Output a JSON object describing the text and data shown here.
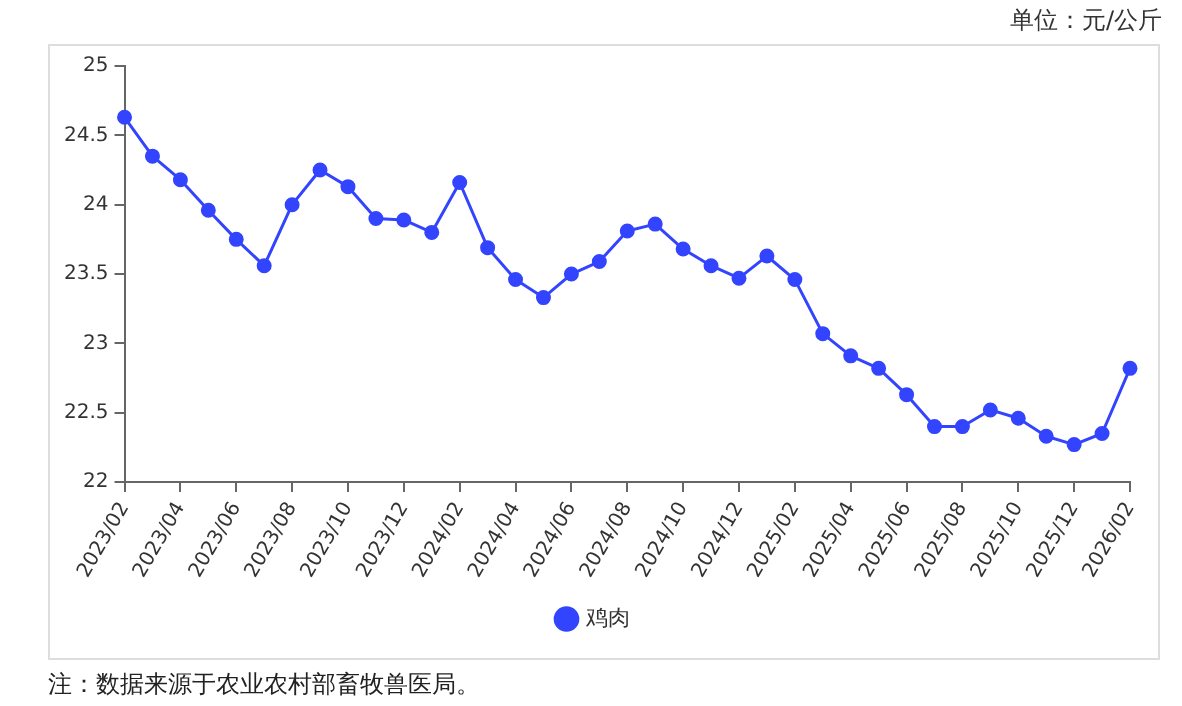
{
  "chart_data": {
    "type": "line",
    "ylabel": "单位：元/公斤",
    "annotations": [
      "注：数据来源于农业农村部畜牧兽医局。"
    ],
    "categories": [
      "2023/02",
      null,
      "2023/04",
      null,
      "2023/06",
      null,
      "2023/08",
      null,
      "2023/10",
      null,
      "2023/12",
      null,
      "2024/02",
      null,
      "2024/04",
      null,
      "2024/06",
      null,
      "2024/08",
      null,
      "2024/10",
      null,
      "2024/12",
      null,
      "2025/02",
      null,
      "2025/04",
      null,
      "2025/06",
      null,
      "2025/08",
      null,
      "2025/10",
      null,
      "2025/12",
      null,
      "2026/02"
    ],
    "series": [
      {
        "name": "鸡肉",
        "color": "#3344ff",
        "values": [
          24.63,
          24.35,
          24.18,
          23.96,
          23.75,
          23.56,
          24.0,
          24.25,
          24.13,
          23.9,
          23.89,
          23.8,
          24.16,
          23.69,
          23.46,
          23.33,
          23.5,
          23.59,
          23.81,
          23.86,
          23.68,
          23.56,
          23.47,
          23.63,
          23.46,
          23.07,
          22.91,
          22.82,
          22.63,
          22.4,
          22.4,
          22.52,
          22.46,
          22.33,
          22.27,
          22.35,
          22.82
        ]
      }
    ],
    "ylim": [
      22,
      25
    ],
    "yticks": [
      22,
      22.5,
      23,
      23.5,
      24,
      24.5,
      25
    ],
    "grid": false,
    "legend": "bottom",
    "marker": "circle",
    "line_style": "solid"
  }
}
